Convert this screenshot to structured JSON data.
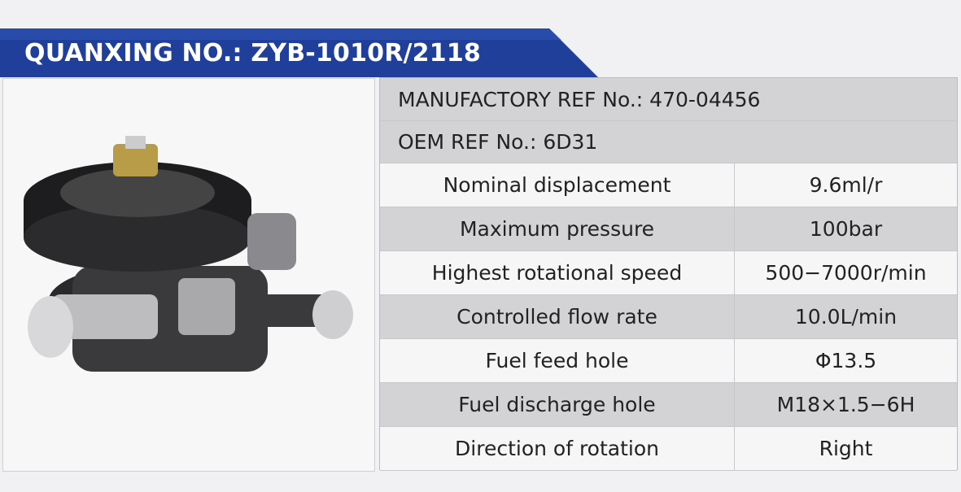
{
  "header": {
    "title": "QUANXING NO.: ZYB-1010R/2118"
  },
  "refs": [
    "MANUFACTORY REF No.: 470-04456",
    "OEM REF No.: 6D31"
  ],
  "specs": [
    [
      "Nominal displacement",
      "9.6ml/r"
    ],
    [
      "Maximum pressure",
      "100bar"
    ],
    [
      "Highest rotational speed",
      "500−7000r/min"
    ],
    [
      "Controlled flow rate",
      "10.0L/min"
    ],
    [
      "Fuel feed hole",
      "Φ13.5"
    ],
    [
      "Fuel discharge hole",
      "M18×1.5−6H"
    ],
    [
      "Direction of rotation",
      "Right"
    ]
  ]
}
